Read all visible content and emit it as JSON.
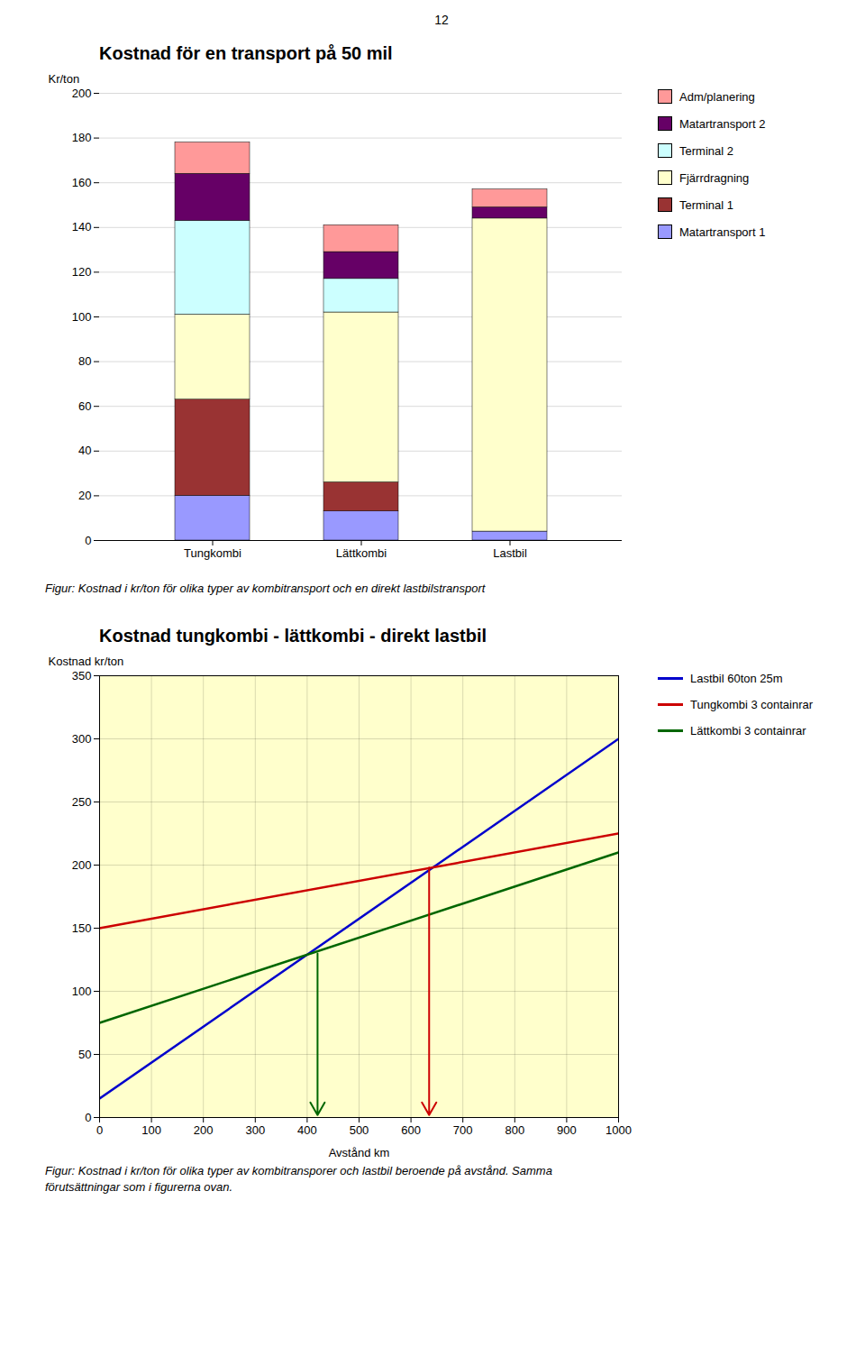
{
  "page_number": "12",
  "chart_data": [
    {
      "type": "bar",
      "stacked": true,
      "title": "Kostnad för en transport på 50 mil",
      "ylabel": "Kr/ton",
      "categories": [
        "Tungkombi",
        "Lättkombi",
        "Lastbil"
      ],
      "series": [
        {
          "name": "Matartransport 1",
          "color": "#9999FF",
          "values": [
            20,
            13,
            4
          ]
        },
        {
          "name": "Terminal 1",
          "color": "#993333",
          "values": [
            43,
            13,
            0
          ]
        },
        {
          "name": "Fjärrdragning",
          "color": "#FFFFCC",
          "values": [
            38,
            76,
            140
          ]
        },
        {
          "name": "Terminal 2",
          "color": "#CCFFFF",
          "values": [
            42,
            15,
            0
          ]
        },
        {
          "name": "Matartransport 2",
          "color": "#660066",
          "values": [
            21,
            12,
            5
          ]
        },
        {
          "name": "Adm/planering",
          "color": "#FF9999",
          "values": [
            14,
            12,
            8
          ]
        }
      ],
      "ylim": [
        0,
        200
      ],
      "yticks": [
        0,
        20,
        40,
        60,
        80,
        100,
        120,
        140,
        160,
        180,
        200
      ],
      "grid": "y",
      "legend": "right",
      "caption": [
        "Figur: Kostnad i kr/ton för olika typer av kombitransport och en direkt lastbilstransport"
      ]
    },
    {
      "type": "line",
      "title": "Kostnad tungkombi - lättkombi - direkt lastbil",
      "xlabel": "Avstånd km",
      "ylabel": "Kostnad kr/ton",
      "x": [
        0,
        1000
      ],
      "series": [
        {
          "name": "Lastbil 60ton 25m",
          "color": "#0000CC",
          "values": [
            15,
            300
          ]
        },
        {
          "name": "Tungkombi 3 containrar",
          "color": "#CC0000",
          "values": [
            150,
            225
          ]
        },
        {
          "name": "Lättkombi 3 containrar",
          "color": "#006600",
          "values": [
            75,
            210
          ]
        }
      ],
      "xlim": [
        0,
        1000
      ],
      "ylim": [
        0,
        350
      ],
      "xticks": [
        0,
        100,
        200,
        300,
        400,
        500,
        600,
        700,
        800,
        900,
        1000
      ],
      "yticks": [
        0,
        50,
        100,
        150,
        200,
        250,
        300,
        350
      ],
      "grid": true,
      "legend": "right",
      "background": "#FFFFCC",
      "arrows": [
        {
          "x": 420,
          "y_start": 130,
          "y_end": 2,
          "color": "#006600"
        },
        {
          "x": 635,
          "y_start": 198,
          "y_end": 2,
          "color": "#CC0000"
        }
      ],
      "caption": [
        "Figur: Kostnad i kr/ton för olika typer av kombitransporer och lastbil beroende på avstånd. Samma",
        "förutsättningar som i figurerna ovan."
      ]
    }
  ]
}
